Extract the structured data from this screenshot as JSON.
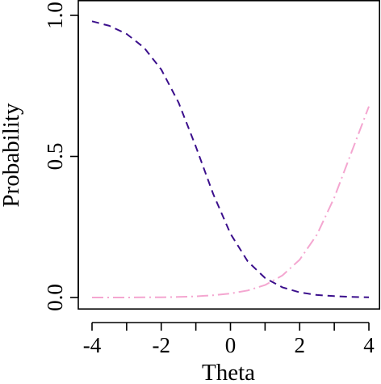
{
  "chart_data": {
    "type": "line",
    "title": "",
    "xlabel": "Theta",
    "ylabel": "Probability",
    "xlim": [
      -4,
      4
    ],
    "ylim": [
      0,
      1
    ],
    "x_ticks": [
      -4,
      -3,
      -2,
      -1,
      0,
      1,
      2,
      3,
      4
    ],
    "x_tick_labels": [
      {
        "value": -4,
        "label": "-4"
      },
      {
        "value": -2,
        "label": "-2"
      },
      {
        "value": 0,
        "label": "0"
      },
      {
        "value": 2,
        "label": "2"
      },
      {
        "value": 4,
        "label": "4"
      }
    ],
    "y_tick_labels": [
      {
        "value": 0,
        "label": "0.0"
      },
      {
        "value": 0.5,
        "label": "0.5"
      },
      {
        "value": 1,
        "label": "1.0"
      }
    ],
    "grid": false,
    "legend": "none",
    "x": [
      -4,
      -3.5,
      -3,
      -2.5,
      -2,
      -1.5,
      -1,
      -0.5,
      0,
      0.5,
      1,
      1.5,
      2,
      2.5,
      3,
      3.5,
      4
    ],
    "series": [
      {
        "color": "#3b0f8c",
        "dash": "dashed",
        "values": [
          0.979,
          0.963,
          0.934,
          0.886,
          0.808,
          0.691,
          0.535,
          0.367,
          0.226,
          0.128,
          0.069,
          0.036,
          0.018,
          0.009,
          0.005,
          0.002,
          0.001
        ]
      },
      {
        "color": "#f4a6d0",
        "dash": "longdash-dot",
        "values": [
          0.0,
          0.0,
          0.0,
          0.001,
          0.001,
          0.002,
          0.004,
          0.008,
          0.014,
          0.025,
          0.044,
          0.078,
          0.134,
          0.223,
          0.354,
          0.516,
          0.677
        ]
      }
    ]
  }
}
